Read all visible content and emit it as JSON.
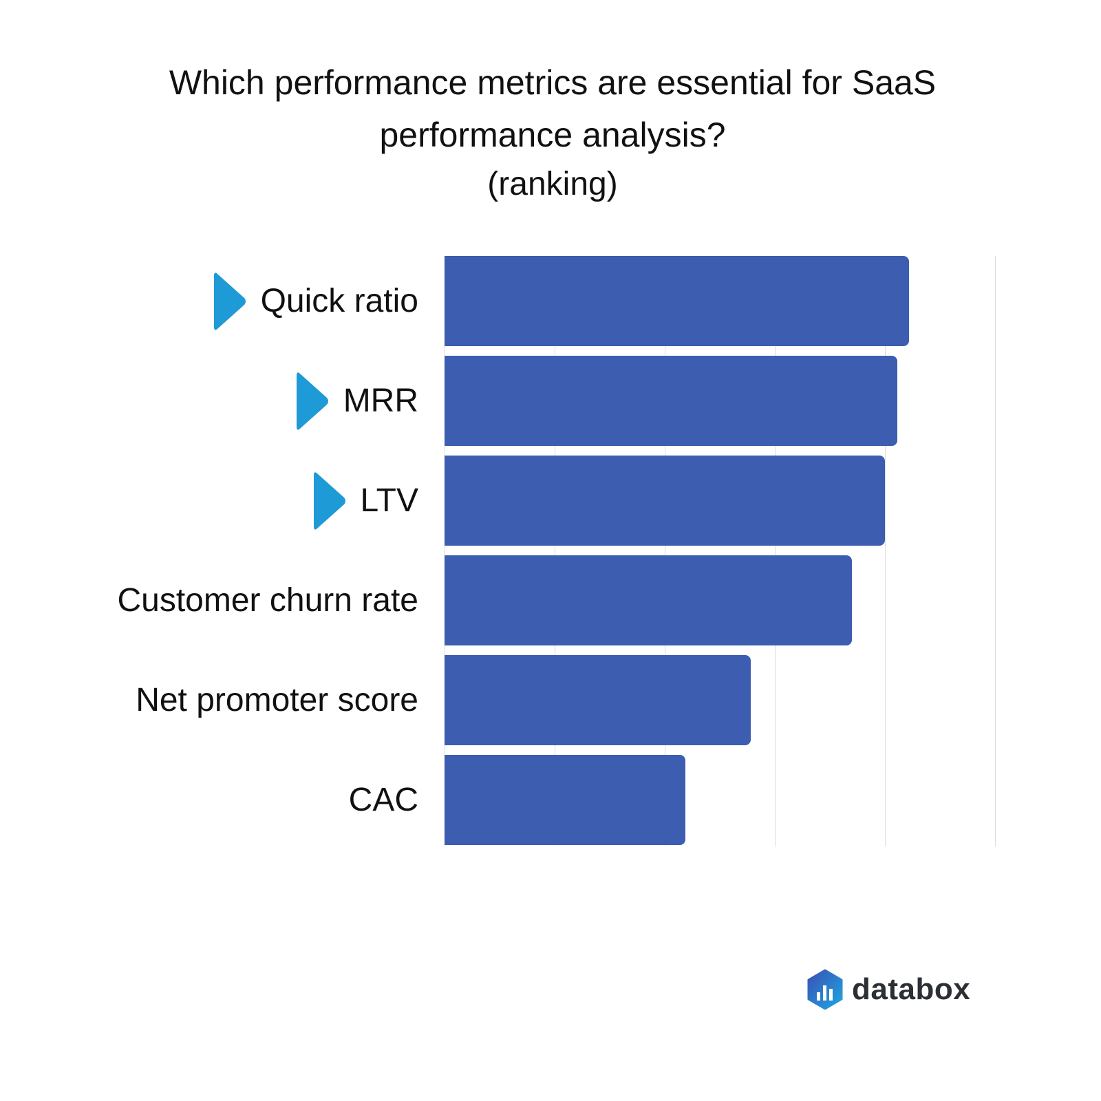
{
  "title": "Which performance metrics are essential for SaaS performance analysis?",
  "title_line1": "Which performance metrics are essential for SaaS",
  "title_line2": "performance analysis?",
  "subtitle": "(ranking)",
  "brand": {
    "name": "databox",
    "icon": "databox-logo-icon"
  },
  "colors": {
    "bar": "#3c5db0",
    "marker": "#1e9ad6",
    "grid": "#dcdcdc"
  },
  "chart_data": {
    "type": "bar",
    "orientation": "horizontal",
    "title": "Which performance metrics are essential for SaaS performance analysis? (ranking)",
    "xlabel": "",
    "ylabel": "",
    "categories": [
      "Quick ratio",
      "MRR",
      "LTV",
      "Customer churn rate",
      "Net promoter score",
      "CAC"
    ],
    "values": [
      4.22,
      4.11,
      4.0,
      3.7,
      2.78,
      2.19
    ],
    "highlighted": [
      true,
      true,
      true,
      false,
      false,
      false
    ],
    "xlim": [
      0,
      5
    ],
    "grid": true,
    "tick_labels_shown": false,
    "legend": null
  }
}
